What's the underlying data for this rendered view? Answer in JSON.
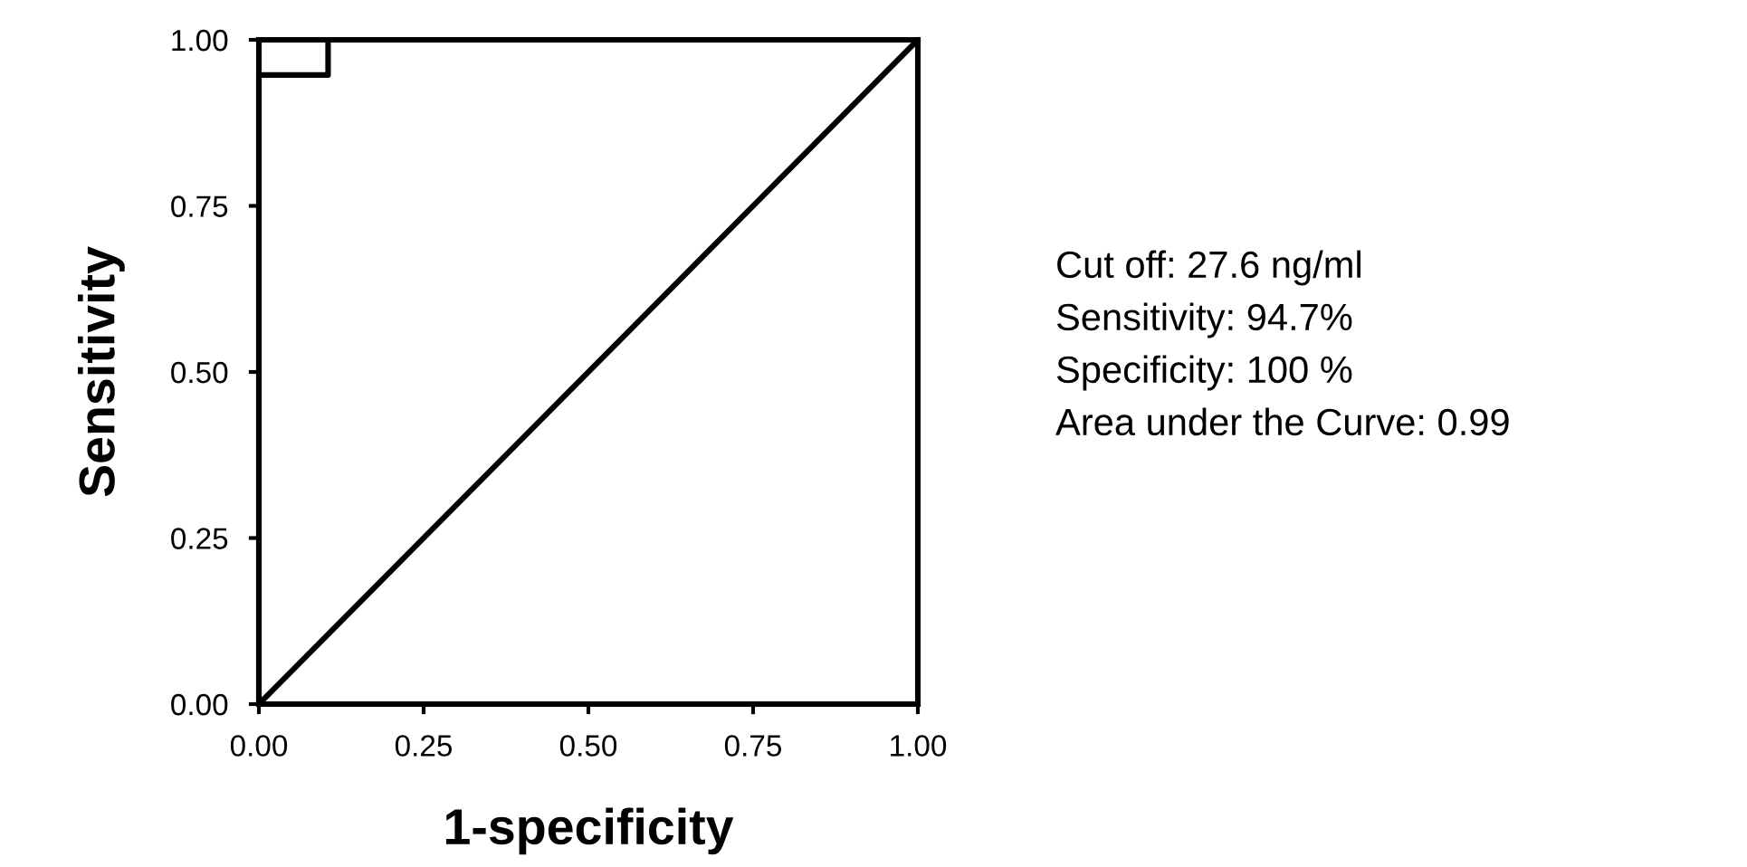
{
  "chart_data": {
    "type": "line",
    "xlabel": "1-specificity",
    "ylabel": "Sensitivity",
    "xlim": [
      0,
      1
    ],
    "ylim": [
      0,
      1
    ],
    "xticks": [
      {
        "value": 0,
        "label": "0.00"
      },
      {
        "value": 0.25,
        "label": "0.25"
      },
      {
        "value": 0.5,
        "label": "0.50"
      },
      {
        "value": 0.75,
        "label": "0.75"
      },
      {
        "value": 1,
        "label": "1.00"
      }
    ],
    "yticks": [
      {
        "value": 0,
        "label": "0.00"
      },
      {
        "value": 0.25,
        "label": "0.25"
      },
      {
        "value": 0.5,
        "label": "0.50"
      },
      {
        "value": 0.75,
        "label": "0.75"
      },
      {
        "value": 1,
        "label": "1.00"
      }
    ],
    "series": [
      {
        "color": "#000000",
        "x": [
          0,
          0,
          0.105,
          0.105,
          1
        ],
        "values": [
          0,
          0.947,
          0.947,
          1,
          1
        ]
      },
      {
        "color": "#000000",
        "x": [
          0,
          1
        ],
        "values": [
          0,
          1
        ]
      }
    ],
    "grid": false,
    "legend": false,
    "marker": "none",
    "line_style": "solid",
    "annotations": [
      "Cut off: 27.6 ng/ml",
      "Sensitivity: 94.7%",
      "Specificity: 100 %",
      "Area under the Curve: 0.99"
    ]
  }
}
